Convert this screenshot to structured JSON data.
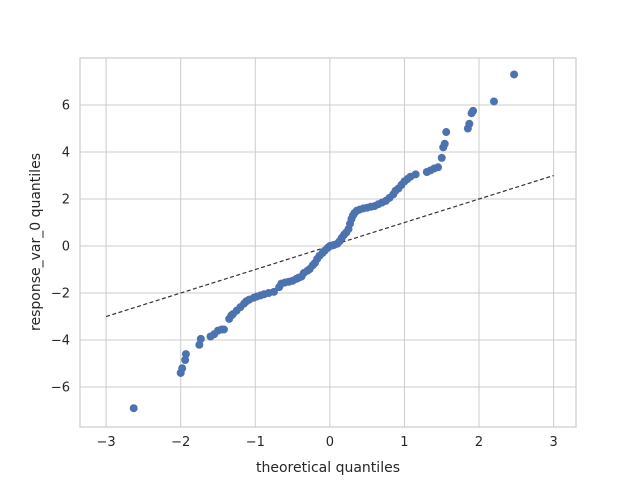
{
  "chart_data": {
    "type": "scatter",
    "title": "",
    "xlabel": "theoretical quantiles",
    "ylabel": "response_var_0 quantiles",
    "xlim": [
      -3.35,
      3.3
    ],
    "ylim": [
      -7.7,
      8.0
    ],
    "xticks": [
      -3,
      -2,
      -1,
      0,
      1,
      2,
      3
    ],
    "xtick_labels": [
      "−3",
      "−2",
      "−1",
      "0",
      "1",
      "2",
      "3"
    ],
    "yticks": [
      -6,
      -4,
      -2,
      0,
      2,
      4,
      6
    ],
    "ytick_labels": [
      "−6",
      "−4",
      "−2",
      "0",
      "2",
      "4",
      "6"
    ],
    "grid": true,
    "legend": null,
    "marker_color": "#4c72b0",
    "reference_line": {
      "x": [
        -3,
        3
      ],
      "y": [
        -3,
        3
      ],
      "style": "dashed",
      "color": "#333333"
    },
    "series": [
      {
        "points": [
          [
            -2.63,
            -6.9
          ],
          [
            -2.0,
            -5.4
          ],
          [
            -1.98,
            -5.2
          ],
          [
            -1.94,
            -4.85
          ],
          [
            -1.93,
            -4.6
          ],
          [
            -1.75,
            -4.2
          ],
          [
            -1.73,
            -3.95
          ],
          [
            -1.6,
            -3.85
          ],
          [
            -1.55,
            -3.75
          ],
          [
            -1.5,
            -3.6
          ],
          [
            -1.45,
            -3.55
          ],
          [
            -1.42,
            -3.55
          ],
          [
            -1.35,
            -3.1
          ],
          [
            -1.32,
            -2.95
          ],
          [
            -1.3,
            -2.9
          ],
          [
            -1.25,
            -2.75
          ],
          [
            -1.2,
            -2.6
          ],
          [
            -1.15,
            -2.45
          ],
          [
            -1.12,
            -2.35
          ],
          [
            -1.08,
            -2.28
          ],
          [
            -1.02,
            -2.2
          ],
          [
            -0.98,
            -2.15
          ],
          [
            -0.93,
            -2.1
          ],
          [
            -0.88,
            -2.05
          ],
          [
            -0.82,
            -2.0
          ],
          [
            -0.75,
            -1.95
          ],
          [
            -0.68,
            -1.75
          ],
          [
            -0.65,
            -1.6
          ],
          [
            -0.6,
            -1.55
          ],
          [
            -0.55,
            -1.52
          ],
          [
            -0.5,
            -1.48
          ],
          [
            -0.45,
            -1.4
          ],
          [
            -0.42,
            -1.35
          ],
          [
            -0.38,
            -1.3
          ],
          [
            -0.35,
            -1.15
          ],
          [
            -0.3,
            -1.05
          ],
          [
            -0.27,
            -0.98
          ],
          [
            -0.23,
            -0.82
          ],
          [
            -0.2,
            -0.72
          ],
          [
            -0.17,
            -0.55
          ],
          [
            -0.14,
            -0.42
          ],
          [
            -0.1,
            -0.3
          ],
          [
            -0.07,
            -0.2
          ],
          [
            -0.03,
            -0.08
          ],
          [
            0.0,
            0.0
          ],
          [
            0.03,
            0.02
          ],
          [
            0.06,
            0.05
          ],
          [
            0.1,
            0.1
          ],
          [
            0.13,
            0.2
          ],
          [
            0.16,
            0.35
          ],
          [
            0.19,
            0.48
          ],
          [
            0.22,
            0.58
          ],
          [
            0.25,
            0.72
          ],
          [
            0.27,
            0.95
          ],
          [
            0.29,
            1.15
          ],
          [
            0.31,
            1.3
          ],
          [
            0.33,
            1.4
          ],
          [
            0.36,
            1.5
          ],
          [
            0.4,
            1.55
          ],
          [
            0.45,
            1.6
          ],
          [
            0.5,
            1.63
          ],
          [
            0.55,
            1.67
          ],
          [
            0.6,
            1.7
          ],
          [
            0.65,
            1.78
          ],
          [
            0.7,
            1.85
          ],
          [
            0.75,
            1.92
          ],
          [
            0.8,
            2.05
          ],
          [
            0.85,
            2.2
          ],
          [
            0.88,
            2.35
          ],
          [
            0.92,
            2.45
          ],
          [
            0.96,
            2.6
          ],
          [
            1.0,
            2.75
          ],
          [
            1.04,
            2.85
          ],
          [
            1.08,
            2.95
          ],
          [
            1.15,
            3.05
          ],
          [
            1.3,
            3.15
          ],
          [
            1.35,
            3.22
          ],
          [
            1.4,
            3.3
          ],
          [
            1.45,
            3.35
          ],
          [
            1.5,
            3.75
          ],
          [
            1.52,
            4.2
          ],
          [
            1.54,
            4.35
          ],
          [
            1.56,
            4.85
          ],
          [
            1.85,
            5.0
          ],
          [
            1.87,
            5.2
          ],
          [
            1.9,
            5.65
          ],
          [
            1.92,
            5.75
          ],
          [
            2.2,
            6.15
          ],
          [
            2.47,
            7.3
          ]
        ]
      }
    ]
  }
}
